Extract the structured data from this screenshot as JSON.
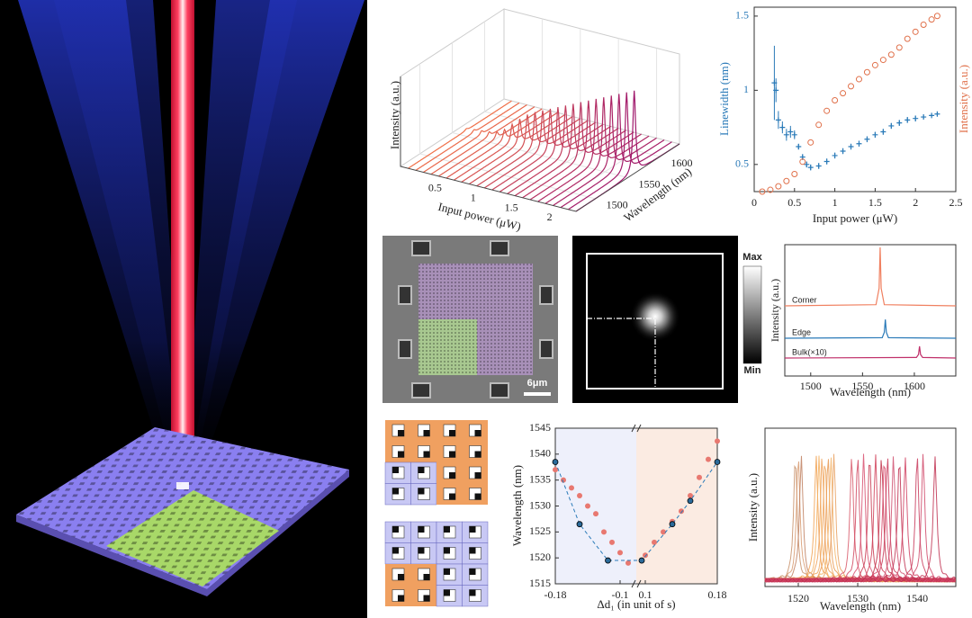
{
  "panels": {
    "sem_scale_bar": "6μm",
    "colorbar_max": "Max",
    "colorbar_min": "Min"
  },
  "chart_data": [
    {
      "type": "waterfall",
      "xlabel": "Input power (μW)",
      "ylabel": "Wavelength (nm)",
      "zlabel": "Intensity (a.u.)",
      "xlim": [
        0,
        2.3
      ],
      "xticks": [
        0.5,
        1,
        1.5,
        2
      ],
      "ylim": [
        1470,
        1630
      ],
      "yticks": [
        1500,
        1550,
        1600
      ],
      "zlim": [
        0,
        1
      ],
      "peak_wavelength": 1560,
      "color_start": "#f07048",
      "color_end": "#a0186c",
      "x": [
        0.1,
        0.2,
        0.3,
        0.4,
        0.5,
        0.6,
        0.7,
        0.8,
        0.9,
        1.0,
        1.1,
        1.2,
        1.3,
        1.4,
        1.5,
        1.6,
        1.7,
        1.8,
        1.9,
        2.0,
        2.1,
        2.2,
        2.3
      ],
      "values": [
        0.02,
        0.03,
        0.04,
        0.05,
        0.07,
        0.12,
        0.2,
        0.28,
        0.35,
        0.4,
        0.44,
        0.48,
        0.52,
        0.56,
        0.6,
        0.64,
        0.68,
        0.72,
        0.76,
        0.8,
        0.84,
        0.88,
        0.92
      ]
    },
    {
      "type": "dual_scatter",
      "xlabel": "Input power (μW)",
      "ylabel": "Linewidth (nm)",
      "y2label": "Intensity (a.u.)",
      "xlim": [
        0,
        2.5
      ],
      "xticks": [
        0,
        0.5,
        1,
        1.5,
        2,
        2.5
      ],
      "ylim": [
        0.317,
        1.56
      ],
      "yticks": [
        0.5,
        1,
        1.5
      ],
      "y2lim": [
        0,
        1.05
      ],
      "series": [
        {
          "color": "#2a7ab8",
          "x": [
            0.25,
            0.27,
            0.3,
            0.35,
            0.4,
            0.45,
            0.5,
            0.55,
            0.6,
            0.65,
            0.7,
            0.8,
            0.9,
            1.0,
            1.1,
            1.2,
            1.3,
            1.4,
            1.5,
            1.6,
            1.7,
            1.8,
            1.9,
            2.0,
            2.1,
            2.2,
            2.27
          ],
          "values": [
            1.05,
            1.0,
            0.8,
            0.75,
            0.7,
            0.72,
            0.7,
            0.62,
            0.55,
            0.5,
            0.48,
            0.49,
            0.52,
            0.56,
            0.59,
            0.62,
            0.64,
            0.67,
            0.7,
            0.72,
            0.76,
            0.78,
            0.8,
            0.81,
            0.82,
            0.83,
            0.84
          ],
          "errors": [
            0.25,
            0.08,
            0.06,
            0.04,
            0.04,
            0.04,
            0.03,
            0.02,
            0.02,
            0.02,
            0.02,
            0.02,
            0.02,
            0.02,
            0.02,
            0.02,
            0.02,
            0.02,
            0.02,
            0.02,
            0.02,
            0.02,
            0.02,
            0.02,
            0.01,
            0.01,
            0.01
          ]
        },
        {
          "color": "#e0704a",
          "axis": "y2",
          "x": [
            0.1,
            0.2,
            0.3,
            0.4,
            0.5,
            0.6,
            0.7,
            0.8,
            0.9,
            1.0,
            1.1,
            1.2,
            1.3,
            1.4,
            1.5,
            1.6,
            1.7,
            1.8,
            1.9,
            2.0,
            2.1,
            2.2,
            2.27
          ],
          "values": [
            0.0,
            0.01,
            0.03,
            0.06,
            0.1,
            0.17,
            0.28,
            0.38,
            0.46,
            0.52,
            0.56,
            0.6,
            0.64,
            0.68,
            0.72,
            0.75,
            0.78,
            0.82,
            0.87,
            0.91,
            0.95,
            0.98,
            1.0
          ]
        }
      ]
    },
    {
      "type": "stacked_spectra",
      "xlabel": "Wavelength (nm)",
      "ylabel": "Intensity (a.u.)",
      "xlim": [
        1475,
        1640
      ],
      "xticks": [
        1500,
        1550,
        1600
      ],
      "series": [
        {
          "name": "Corner",
          "color": "#f08060",
          "x": [
            1475,
            1563,
            1566,
            1567,
            1568,
            1571,
            1640
          ],
          "values": [
            0,
            0.02,
            0.3,
            1,
            0.3,
            0.02,
            0
          ]
        },
        {
          "name": "Edge",
          "color": "#2a7ab8",
          "x": [
            1475,
            1569,
            1571,
            1572,
            1573,
            1575,
            1640
          ],
          "values": [
            0,
            0.01,
            0.1,
            0.32,
            0.1,
            0.01,
            0
          ]
        },
        {
          "name": "Bulk(×10)",
          "color": "#c0306a",
          "x": [
            1475,
            1602,
            1604,
            1605,
            1606,
            1608,
            1640
          ],
          "values": [
            0,
            0.01,
            0.06,
            0.2,
            0.06,
            0.01,
            0
          ]
        }
      ]
    },
    {
      "type": "broken_scatter",
      "xlabel": "Δd₁ (in unit of s)",
      "ylabel": "Wavelength (nm)",
      "xlim": [
        -0.18,
        0.18
      ],
      "x_break": [
        -0.08,
        0.09
      ],
      "xticks": [
        -0.18,
        -0.1,
        0.1,
        0.18
      ],
      "ylim": [
        1515,
        1545
      ],
      "yticks": [
        1515,
        1520,
        1525,
        1530,
        1535,
        1540,
        1545
      ],
      "series": [
        {
          "color": "#e87870",
          "x": [
            -0.18,
            -0.17,
            -0.16,
            -0.15,
            -0.14,
            -0.13,
            -0.12,
            -0.11,
            -0.1,
            -0.09,
            0.1,
            0.11,
            0.12,
            0.13,
            0.14,
            0.15,
            0.16,
            0.17,
            0.18
          ],
          "values": [
            1537,
            1535,
            1533.5,
            1532,
            1530,
            1528.5,
            1525,
            1523,
            1521,
            1519,
            1520.5,
            1523,
            1525,
            1527,
            1529,
            1532,
            1535.5,
            1539,
            1542.5
          ]
        },
        {
          "color": "#1a4a7a",
          "dashed": true,
          "x": [
            -0.18,
            -0.15,
            -0.115,
            0.096,
            0.13,
            0.15,
            0.18
          ],
          "values": [
            1538.5,
            1526.5,
            1519.5,
            1519.5,
            1526.5,
            1531,
            1538.5
          ]
        }
      ]
    },
    {
      "type": "peaks",
      "xlabel": "Wavelength (nm)",
      "ylabel": "Intensity (a.u.)",
      "xlim": [
        1514.4,
        1546.5
      ],
      "xticks": [
        1520,
        1530,
        1540
      ],
      "values": [
        1519.5,
        1520,
        1520.5,
        1523,
        1523.5,
        1524,
        1524.5,
        1525,
        1525.5,
        1526,
        1529,
        1530,
        1531,
        1532,
        1533,
        1534,
        1534.5,
        1535,
        1536,
        1537,
        1538,
        1540,
        1541,
        1543
      ],
      "colors": [
        "#c8906a",
        "#d89a70",
        "#c08060",
        "#f0a050",
        "#f4b060",
        "#eea058",
        "#f0a860",
        "#e89850",
        "#f3b468",
        "#e8a060",
        "#d85868",
        "#d04860",
        "#d85070",
        "#c83850",
        "#d04058",
        "#c03048",
        "#d84868",
        "#c83858",
        "#d05070",
        "#c03050",
        "#d04060",
        "#c8385a",
        "#d04868",
        "#c03050"
      ]
    }
  ]
}
